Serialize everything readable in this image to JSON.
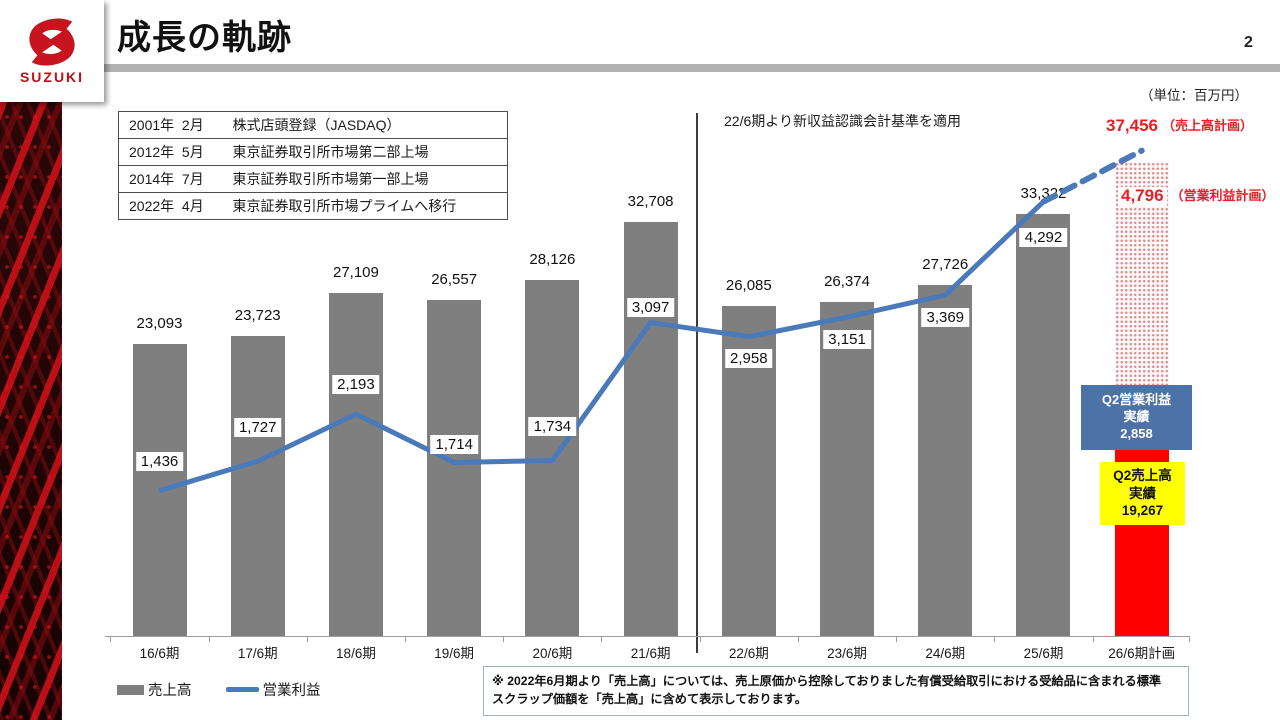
{
  "header": {
    "title": "成長の軌跡",
    "page_number": "2",
    "brand": "SUZUKI",
    "unit_note": "（単位：百万円）"
  },
  "milestones": {
    "rows": [
      {
        "date": "2001年  2月",
        "event": "株式店頭登録（JASDAQ）"
      },
      {
        "date": "2012年  5月",
        "event": "東京証券取引所市場第二部上場"
      },
      {
        "date": "2014年  7月",
        "event": "東京証券取引所市場第一部上場"
      },
      {
        "date": "2022年  4月",
        "event": "東京証券取引所市場プライムへ移行"
      }
    ]
  },
  "annotations": {
    "accounting_note": "22/6期より新収益認識会計基準を適用",
    "sales_plan_value": "37,456",
    "sales_plan_label": "（売上高計画）",
    "profit_plan_value": "4,796",
    "profit_plan_label": "（営業利益計画）",
    "q2_profit_box": {
      "title": "Q2営業利益",
      "subtitle": "実績",
      "value": "2,858"
    },
    "q2_sales_box": {
      "title": "Q2売上高",
      "subtitle": "実績",
      "value": "19,267"
    }
  },
  "legend": {
    "bar_label": "売上高",
    "line_label": "営業利益"
  },
  "footnote": "※ 2022年6月期より「売上高」については、売上原価から控除しておりました有償受給取引における受給品に含まれる標準\nスクラップ価額を「売上高」に含めて表示しております。",
  "colors": {
    "bar_gray": "#7f7f7f",
    "line_blue": "#4a7ab9",
    "plan_red": "#fe0000",
    "red_text": "#ed1c24",
    "q2_profit_bg": "#4d72a7",
    "q2_sales_bg": "#ffff00",
    "hatch_dot": "#dc9294"
  },
  "chart_data": {
    "type": "combo: bar (売上高) + line (営業利益), dual axis",
    "unit": "百万円",
    "categories": [
      "16/6期",
      "17/6期",
      "18/6期",
      "19/6期",
      "20/6期",
      "21/6期",
      "22/6期",
      "23/6期",
      "24/6期",
      "25/6期",
      "26/6期計画"
    ],
    "plan_index": 10,
    "divider_note_after": "21/6期",
    "series": [
      {
        "name": "売上高",
        "type": "bar",
        "values": [
          23093,
          23723,
          27109,
          26557,
          28126,
          32708,
          26085,
          26374,
          27726,
          33322,
          37456
        ],
        "labels": [
          "23,093",
          "23,723",
          "27,109",
          "26,557",
          "28,126",
          "32,708",
          "26,085",
          "26,374",
          "27,726",
          "33,322",
          "37,456"
        ]
      },
      {
        "name": "営業利益",
        "type": "line",
        "values": [
          1436,
          1727,
          2193,
          1714,
          1734,
          3097,
          2958,
          3151,
          3369,
          4292,
          4796
        ],
        "labels": [
          "1,436",
          "1,727",
          "2,193",
          "1,714",
          "1,734",
          "3,097",
          "2,958",
          "3,151",
          "3,369",
          "4,292",
          "4,796"
        ]
      }
    ],
    "q2_actuals": {
      "売上高": 19267,
      "営業利益": 2858
    },
    "bar_axis_range": [
      0,
      40000
    ],
    "line_axis_range": [
      0,
      5000
    ],
    "gridlines": false,
    "legend_position": "bottom-left"
  }
}
